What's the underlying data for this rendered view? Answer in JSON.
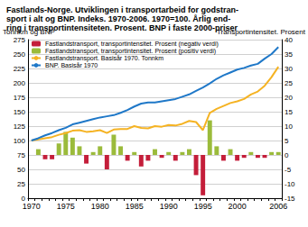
{
  "chart_data": {
    "type": "combo",
    "title": "Fastlands-Norge. Utviklingen i transportarbeid for godstran-\nsport i alt og BNP. Indeks. 1970-2006. 1970=100. Årlig end-\nring i transportintensiteten. Prosent. BNP i faste 2000-priser",
    "y_label": "Tonnkm og BNP",
    "y2_label": "Transportintensitet. Prosent",
    "categories": [
      "1970",
      null,
      null,
      null,
      null,
      "1975",
      null,
      null,
      null,
      null,
      "1980",
      null,
      null,
      null,
      null,
      "1985",
      null,
      null,
      null,
      null,
      "1990",
      null,
      null,
      null,
      null,
      "1995",
      null,
      null,
      null,
      null,
      "2000",
      null,
      null,
      null,
      null,
      null,
      "2006"
    ],
    "ylim": [
      0,
      275
    ],
    "yticks": [
      0,
      25,
      50,
      75,
      100,
      125,
      150,
      175,
      200,
      225,
      250,
      275
    ],
    "y2lim": [
      -15,
      40
    ],
    "y2ticks": [
      -15,
      -10,
      -5,
      0,
      5,
      10,
      15,
      20,
      25,
      30,
      35,
      40
    ],
    "grid": true,
    "legend": "top-left",
    "series": [
      {
        "name": "Fastlandstransport, transportintensitet. Prosent (negativ verdi)",
        "type": "bar",
        "axis": "y2",
        "color": "#c41e3a",
        "values": [
          null,
          null,
          -1.5,
          -1.5,
          null,
          null,
          null,
          null,
          -3,
          null,
          null,
          -5,
          null,
          null,
          -2,
          null,
          -4,
          -2,
          null,
          -1,
          null,
          -2,
          null,
          null,
          -7,
          -14,
          null,
          null,
          -2,
          null,
          -2,
          -1,
          null,
          -1,
          -1,
          null,
          null
        ]
      },
      {
        "name": "Fastlandstransport, transportintensitet. Prosent (positiv verdi)",
        "type": "bar",
        "axis": "y2",
        "color": "#9bbb3b",
        "values": [
          null,
          2,
          null,
          null,
          4,
          8,
          6,
          3,
          null,
          1,
          3,
          null,
          7,
          3,
          null,
          1,
          null,
          null,
          2,
          null,
          1,
          null,
          1,
          2,
          null,
          null,
          12,
          3,
          null,
          2,
          null,
          null,
          1,
          null,
          null,
          1,
          1
        ]
      },
      {
        "name": "Fastlandstransport. Basisår 1970. Tonnkm",
        "type": "line",
        "color": "#f5b323",
        "values": [
          100,
          102,
          104,
          106,
          110,
          113,
          117,
          118,
          115,
          116,
          118,
          113,
          119,
          120,
          120,
          125,
          122,
          121,
          125,
          124,
          127,
          126,
          129,
          134,
          132,
          118,
          148,
          155,
          160,
          165,
          168,
          172,
          180,
          185,
          195,
          210,
          228
        ]
      },
      {
        "name": "BNP. Basisår 1970",
        "type": "line",
        "color": "#1f78c8",
        "values": [
          100,
          104,
          109,
          113,
          118,
          122,
          128,
          131,
          134,
          137,
          140,
          142,
          144,
          148,
          153,
          159,
          164,
          166,
          166,
          168,
          170,
          172,
          176,
          180,
          186,
          192,
          199,
          207,
          213,
          218,
          223,
          226,
          230,
          233,
          242,
          250,
          262
        ]
      }
    ]
  }
}
